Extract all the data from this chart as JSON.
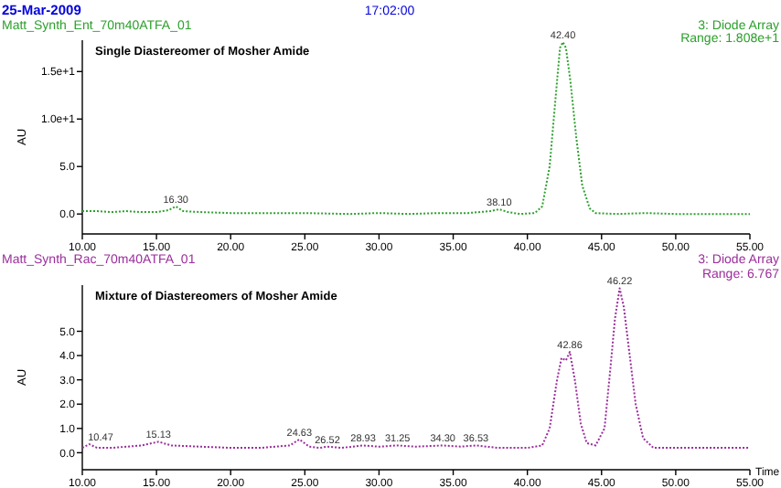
{
  "chart_data": [
    {
      "type": "line",
      "title": "Single Diastereomer of Mosher Amide",
      "ylabel": "AU",
      "annotations": [
        "25-Mar-2009",
        "17:02:00",
        "Matt_Synth_Ent_70m40ATFA_01",
        "3: Diode Array",
        "Range: 1.808e+1",
        {
          "text": "16.30",
          "x": 16.3,
          "y": 0.8
        },
        {
          "text": "38.10",
          "x": 38.1,
          "y": 0.5
        },
        {
          "text": "42.40",
          "x": 42.4,
          "y": 18.1
        }
      ],
      "xlim": [
        10,
        55
      ],
      "xticks": [
        {
          "value": 10,
          "label": "10.00"
        },
        {
          "value": 15,
          "label": "15.00"
        },
        {
          "value": 20,
          "label": "20.00"
        },
        {
          "value": 25,
          "label": "25.00"
        },
        {
          "value": 30,
          "label": "30.00"
        },
        {
          "value": 35,
          "label": "35.00"
        },
        {
          "value": 40,
          "label": "40.00"
        },
        {
          "value": 45,
          "label": "45.00"
        },
        {
          "value": 50,
          "label": "50.00"
        },
        {
          "value": 55,
          "label": "55.00"
        }
      ],
      "ylim": [
        -2.1,
        18.3
      ],
      "yticks": [
        {
          "value": 0,
          "label": "0.0"
        },
        {
          "value": 5,
          "label": "5.0"
        },
        {
          "value": 10,
          "label": "1.0e+1"
        },
        {
          "value": 15,
          "label": "1.5e+1"
        }
      ],
      "line_style": "dotted",
      "marker": "none",
      "series": [
        {
          "color": "#2ca02c",
          "x": [
            10,
            11,
            12,
            13,
            14,
            15,
            15.8,
            16.3,
            16.8,
            18,
            20,
            22,
            25,
            28,
            30,
            32,
            34,
            36,
            37.5,
            38.1,
            38.7,
            39.5,
            40.5,
            41,
            41.5,
            42,
            42.2,
            42.4,
            42.6,
            42.9,
            43.3,
            43.7,
            44.2,
            44.6,
            46,
            48,
            50,
            52,
            55
          ],
          "values": [
            0.3,
            0.3,
            0.2,
            0.3,
            0.2,
            0.2,
            0.4,
            0.8,
            0.3,
            0.2,
            0.1,
            0.1,
            0.1,
            0.0,
            0.1,
            0.0,
            0.1,
            0.1,
            0.3,
            0.5,
            0.2,
            0.0,
            0.1,
            0.8,
            5,
            14,
            17.5,
            18.1,
            17.5,
            14,
            8,
            3,
            0.6,
            0.1,
            0.0,
            0.1,
            0.0,
            0.0,
            0.0
          ]
        }
      ]
    },
    {
      "type": "line",
      "title": "Mixture of Diastereomers of Mosher Amide",
      "ylabel": "AU",
      "xlabel": "Time",
      "annotations": [
        "Matt_Synth_Rac_70m40ATFA_01",
        "3: Diode Array",
        "Range: 6.767",
        {
          "text": "10.47",
          "x": 10.47,
          "y": 0.35
        },
        {
          "text": "15.13",
          "x": 15.13,
          "y": 0.45
        },
        {
          "text": "24.63",
          "x": 24.63,
          "y": 0.55
        },
        {
          "text": "26.52",
          "x": 26.52,
          "y": 0.25
        },
        {
          "text": "28.93",
          "x": 28.93,
          "y": 0.3
        },
        {
          "text": "31.25",
          "x": 31.25,
          "y": 0.3
        },
        {
          "text": "34.30",
          "x": 34.3,
          "y": 0.3
        },
        {
          "text": "36.53",
          "x": 36.53,
          "y": 0.3
        },
        {
          "text": "42.86",
          "x": 42.86,
          "y": 4.15
        },
        {
          "text": "46.22",
          "x": 46.22,
          "y": 6.77
        }
      ],
      "xlim": [
        10,
        55
      ],
      "xticks": [
        {
          "value": 10,
          "label": "10.00"
        },
        {
          "value": 15,
          "label": "15.00"
        },
        {
          "value": 20,
          "label": "20.00"
        },
        {
          "value": 25,
          "label": "25.00"
        },
        {
          "value": 30,
          "label": "30.00"
        },
        {
          "value": 35,
          "label": "35.00"
        },
        {
          "value": 40,
          "label": "40.00"
        },
        {
          "value": 45,
          "label": "45.00"
        },
        {
          "value": 50,
          "label": "50.00"
        },
        {
          "value": 55,
          "label": "55.00"
        }
      ],
      "ylim": [
        -0.7,
        6.9
      ],
      "yticks": [
        {
          "value": 0,
          "label": "0.0"
        },
        {
          "value": 1,
          "label": "1.0"
        },
        {
          "value": 2,
          "label": "2.0"
        },
        {
          "value": 3,
          "label": "3.0"
        },
        {
          "value": 4,
          "label": "4.0"
        },
        {
          "value": 5,
          "label": "5.0"
        }
      ],
      "line_style": "dotted",
      "marker": "none",
      "series": [
        {
          "color": "#9b2d9b",
          "x": [
            10,
            10.47,
            11,
            12,
            13,
            14,
            15.13,
            16,
            18,
            20,
            22,
            24,
            24.63,
            25.3,
            26,
            26.52,
            27.5,
            28.93,
            30,
            31.25,
            32.5,
            34.3,
            35.5,
            36.53,
            38,
            40,
            41,
            41.5,
            42,
            42.3,
            42.6,
            42.86,
            43.2,
            43.6,
            44,
            44.6,
            45.2,
            45.6,
            45.9,
            46.22,
            46.5,
            46.9,
            47.3,
            47.8,
            48.5,
            50,
            52,
            55
          ],
          "values": [
            0.2,
            0.35,
            0.2,
            0.2,
            0.25,
            0.3,
            0.45,
            0.3,
            0.25,
            0.2,
            0.2,
            0.3,
            0.55,
            0.25,
            0.2,
            0.25,
            0.2,
            0.3,
            0.25,
            0.3,
            0.25,
            0.3,
            0.25,
            0.3,
            0.2,
            0.2,
            0.3,
            1.0,
            3.0,
            3.9,
            3.8,
            4.15,
            3.0,
            1.2,
            0.4,
            0.3,
            1.0,
            3.5,
            5.5,
            6.77,
            6.0,
            4.0,
            2.0,
            0.6,
            0.2,
            0.2,
            0.2,
            0.2
          ]
        }
      ]
    }
  ]
}
